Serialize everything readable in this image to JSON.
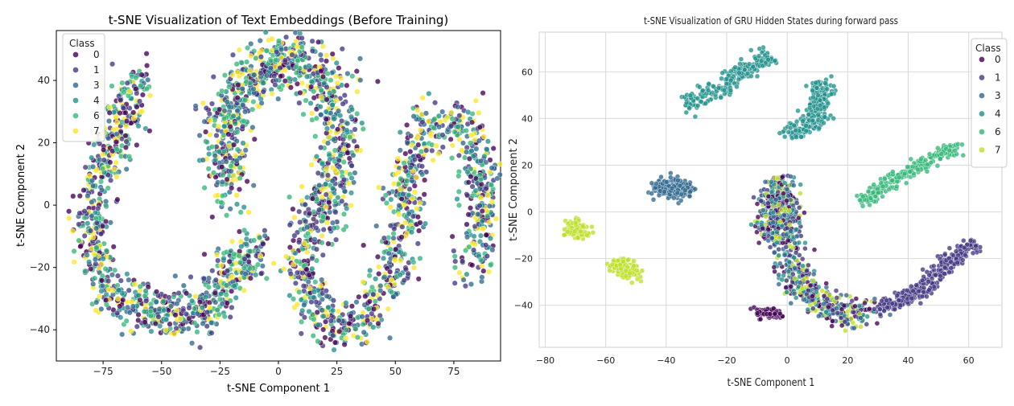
{
  "chart_data": [
    {
      "type": "scatter",
      "title": "t-SNE Visualization of Text Embeddings (Before Training)",
      "xlabel": "t-SNE Component 1",
      "ylabel": "t-SNE Component 2",
      "xlim": [
        -95,
        95
      ],
      "ylim": [
        -50,
        56
      ],
      "xticks": [
        -75,
        -50,
        -25,
        0,
        25,
        50,
        75
      ],
      "yticks": [
        -40,
        -20,
        0,
        20,
        40
      ],
      "grid": false,
      "legend": {
        "title": "Class",
        "placement": "top-left"
      },
      "series": [
        {
          "name": "0",
          "color": "#440154"
        },
        {
          "name": "1",
          "color": "#443983"
        },
        {
          "name": "3",
          "color": "#31688e"
        },
        {
          "name": "4",
          "color": "#21918c"
        },
        {
          "name": "6",
          "color": "#35b779"
        },
        {
          "name": "7",
          "color": "#fde725"
        }
      ],
      "clusters": [
        {
          "region": "left-arm",
          "path": [
            [
              -60,
              40
            ],
            [
              -68,
              25
            ],
            [
              -75,
              12
            ],
            [
              -80,
              0
            ],
            [
              -80,
              -15
            ],
            [
              -72,
              -28
            ],
            [
              -60,
              -32
            ],
            [
              -45,
              -35
            ],
            [
              -30,
              -33
            ],
            [
              -20,
              -22
            ],
            [
              -8,
              -12
            ]
          ],
          "spread": 8,
          "classes": [
            "0",
            "1",
            "3",
            "4",
            "6",
            "7"
          ],
          "count": 900
        },
        {
          "region": "center-top",
          "path": [
            [
              -20,
              5
            ],
            [
              -25,
              25
            ],
            [
              -10,
              42
            ],
            [
              5,
              48
            ],
            [
              22,
              38
            ],
            [
              28,
              20
            ],
            [
              22,
              5
            ],
            [
              14,
              -10
            ]
          ],
          "spread": 10,
          "classes": [
            "0",
            "1",
            "3",
            "4",
            "6",
            "7"
          ],
          "count": 1000
        },
        {
          "region": "right-arm",
          "path": [
            [
              10,
              -15
            ],
            [
              12,
              -30
            ],
            [
              25,
              -40
            ],
            [
              40,
              -35
            ],
            [
              52,
              -15
            ],
            [
              55,
              10
            ],
            [
              62,
              25
            ],
            [
              78,
              28
            ],
            [
              88,
              10
            ],
            [
              86,
              -10
            ],
            [
              82,
              -22
            ]
          ],
          "spread": 8,
          "classes": [
            "0",
            "1",
            "3",
            "4",
            "6",
            "7"
          ],
          "count": 900
        }
      ]
    },
    {
      "type": "scatter",
      "title": "t-SNE Visualization of GRU Hidden States during forward pass",
      "xlabel": "t-SNE Component 1",
      "ylabel": "t-SNE Component 2",
      "xlim": [
        -82,
        71
      ],
      "ylim": [
        -58,
        77
      ],
      "xticks": [
        -80,
        -60,
        -40,
        -20,
        0,
        20,
        40,
        60
      ],
      "yticks": [
        -40,
        -20,
        0,
        20,
        40,
        60
      ],
      "grid": true,
      "legend": {
        "title": "Class",
        "placement": "top-right"
      },
      "series": [
        {
          "name": "0",
          "color": "#440154"
        },
        {
          "name": "1",
          "color": "#443983"
        },
        {
          "name": "3",
          "color": "#31688e"
        },
        {
          "name": "4",
          "color": "#21918c"
        },
        {
          "name": "6",
          "color": "#35b779"
        },
        {
          "name": "7",
          "color": "#bddf26"
        }
      ],
      "clusters": [
        {
          "class": "4",
          "path": [
            [
              -33,
              46
            ],
            [
              -24,
              52
            ],
            [
              -15,
              60
            ],
            [
              -5,
              67
            ]
          ],
          "spread": 4,
          "count": 220
        },
        {
          "class": "3",
          "path": [
            [
              -43,
              10
            ],
            [
              -37,
              10
            ],
            [
              -33,
              10
            ]
          ],
          "spread": 4,
          "count": 200
        },
        {
          "class": "4",
          "path": [
            [
              0,
              32
            ],
            [
              10,
              40
            ],
            [
              12,
              55
            ]
          ],
          "spread": 4,
          "count": 230
        },
        {
          "class": "6",
          "path": [
            [
              25,
              5
            ],
            [
              40,
              17
            ],
            [
              55,
              28
            ]
          ],
          "spread": 3,
          "count": 220
        },
        {
          "class": "7",
          "path": [
            [
              -71,
              -6
            ],
            [
              -68,
              -10
            ]
          ],
          "spread": 3.5,
          "count": 120
        },
        {
          "class": "7",
          "path": [
            [
              -56,
              -23
            ],
            [
              -50,
              -26
            ]
          ],
          "spread": 3.5,
          "count": 150
        },
        {
          "class": "1",
          "path": [
            [
              30,
              -42
            ],
            [
              45,
              -33
            ],
            [
              55,
              -20
            ],
            [
              62,
              -13
            ]
          ],
          "spread": 3.5,
          "count": 320
        },
        {
          "class": "0",
          "path": [
            [
              -10,
              -43
            ],
            [
              -3,
              -44
            ]
          ],
          "spread": 2,
          "count": 90
        },
        {
          "class": "mixed",
          "classes": [
            "0",
            "1",
            "3",
            "4",
            "7"
          ],
          "path": [
            [
              -8,
              -10
            ],
            [
              -4,
              0
            ],
            [
              -2,
              12
            ],
            [
              0,
              -20
            ],
            [
              5,
              -32
            ],
            [
              15,
              -43
            ],
            [
              28,
              -44
            ]
          ],
          "spread": 6,
          "count": 800
        }
      ]
    }
  ]
}
